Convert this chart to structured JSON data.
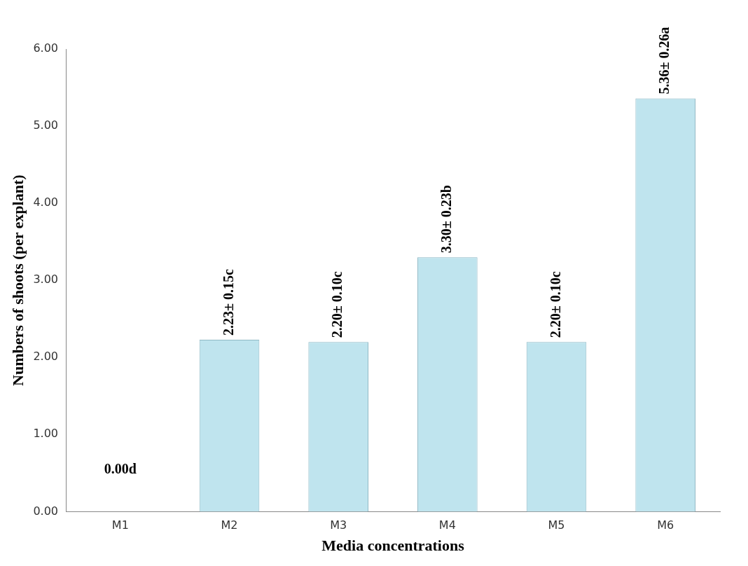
{
  "chart_data": {
    "type": "bar",
    "xlabel": "Media concentrations",
    "ylabel": "Numbers of shoots (per explant)",
    "categories": [
      "M1",
      "M2",
      "M3",
      "M4",
      "M5",
      "M6"
    ],
    "values": [
      0,
      2.23,
      2.2,
      3.3,
      2.2,
      5.36
    ],
    "value_labels": [
      "0.00d",
      "2.23± 0.15c",
      "2.20± 0.10c",
      "3.30± 0.23b",
      "2.20± 0.10c",
      "5.36± 0.26a"
    ],
    "color": "#bfe4ee",
    "ylim": [
      0,
      6
    ],
    "yticks": [
      {
        "value": 0,
        "label": "0.00"
      },
      {
        "value": 1,
        "label": "1.00"
      },
      {
        "value": 2,
        "label": "2.00"
      },
      {
        "value": 3,
        "label": "3.00"
      },
      {
        "value": 4,
        "label": "4.00"
      },
      {
        "value": 5,
        "label": "5.00"
      },
      {
        "value": 6,
        "label": "6.00"
      }
    ],
    "grid": false,
    "legend": false
  }
}
